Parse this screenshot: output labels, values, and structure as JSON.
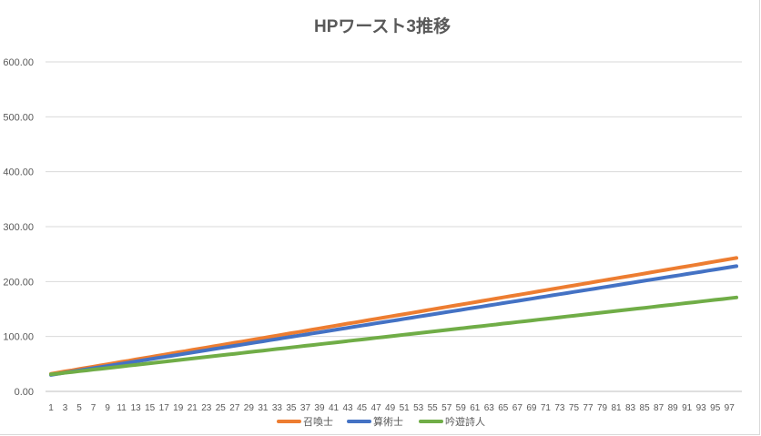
{
  "chart_data": {
    "type": "line",
    "title": "HPワースト3推移",
    "xlabel": "",
    "ylabel": "",
    "x": [
      1,
      2,
      3,
      4,
      5,
      6,
      7,
      8,
      9,
      10,
      11,
      12,
      13,
      14,
      15,
      16,
      17,
      18,
      19,
      20,
      21,
      22,
      23,
      24,
      25,
      26,
      27,
      28,
      29,
      30,
      31,
      32,
      33,
      34,
      35,
      36,
      37,
      38,
      39,
      40,
      41,
      42,
      43,
      44,
      45,
      46,
      47,
      48,
      49,
      50,
      51,
      52,
      53,
      54,
      55,
      56,
      57,
      58,
      59,
      60,
      61,
      62,
      63,
      64,
      65,
      66,
      67,
      68,
      69,
      70,
      71,
      72,
      73,
      74,
      75,
      76,
      77,
      78,
      79,
      80,
      81,
      82,
      83,
      84,
      85,
      86,
      87,
      88,
      89,
      90,
      91,
      92,
      93,
      94,
      95,
      96,
      97,
      98
    ],
    "x_tick_labels": [
      "1",
      "3",
      "5",
      "7",
      "9",
      "11",
      "13",
      "15",
      "17",
      "19",
      "21",
      "23",
      "25",
      "27",
      "29",
      "31",
      "33",
      "35",
      "37",
      "39",
      "41",
      "43",
      "45",
      "47",
      "49",
      "51",
      "53",
      "55",
      "57",
      "59",
      "61",
      "63",
      "65",
      "67",
      "69",
      "71",
      "73",
      "75",
      "77",
      "79",
      "81",
      "83",
      "85",
      "87",
      "89",
      "91",
      "93",
      "95",
      "97"
    ],
    "y_tick_labels": [
      "0.00",
      "100.00",
      "200.00",
      "300.00",
      "400.00",
      "500.00",
      "600.00"
    ],
    "ylim": [
      0,
      600
    ],
    "grid": true,
    "legend": "bottom",
    "series": [
      {
        "name": "召喚士",
        "color": "#ED7D31",
        "start": 32,
        "end": 243,
        "values": [
          32,
          34.2,
          36.4,
          38.5,
          40.7,
          42.9,
          45.1,
          47.2,
          49.4,
          51.6,
          53.8,
          55.9,
          58.1,
          60.3,
          62.5,
          64.6,
          66.8,
          69,
          71.2,
          73.3,
          75.5,
          77.7,
          79.9,
          82,
          84.2,
          86.4,
          88.6,
          90.7,
          92.9,
          95.1,
          97.3,
          99.4,
          101.6,
          103.8,
          106,
          108.1,
          110.3,
          112.5,
          114.7,
          116.8,
          119,
          121.2,
          123.4,
          125.5,
          127.7,
          129.9,
          132.1,
          134.2,
          136.4,
          138.6,
          140.8,
          142.9,
          145.1,
          147.3,
          149.5,
          151.6,
          153.8,
          156,
          158.2,
          160.3,
          162.5,
          164.7,
          166.9,
          169,
          171.2,
          173.4,
          175.6,
          177.7,
          179.9,
          182.1,
          184.3,
          186.4,
          188.6,
          190.8,
          193,
          195.1,
          197.3,
          199.5,
          201.7,
          203.8,
          206,
          208.2,
          210.4,
          212.5,
          214.7,
          216.9,
          219.1,
          221.2,
          223.4,
          225.6,
          227.8,
          229.9,
          232.1,
          234.3,
          236.5,
          238.6,
          240.8,
          243
        ]
      },
      {
        "name": "算術士",
        "color": "#4472C4",
        "start": 30,
        "end": 228,
        "values": [
          30,
          32,
          34.1,
          36.1,
          38.2,
          40.2,
          42.2,
          44.3,
          46.3,
          48.4,
          50.4,
          52.5,
          54.5,
          56.5,
          58.6,
          60.6,
          62.7,
          64.7,
          66.7,
          68.8,
          70.8,
          72.9,
          74.9,
          77,
          79,
          81,
          83.1,
          85.1,
          87.2,
          89.2,
          91.2,
          93.3,
          95.3,
          97.4,
          99.4,
          101.5,
          103.5,
          105.5,
          107.6,
          109.6,
          111.7,
          113.7,
          115.7,
          117.8,
          119.8,
          121.9,
          123.9,
          126,
          128,
          130,
          132.1,
          134.1,
          136.2,
          138.2,
          140.3,
          142.3,
          144.3,
          146.4,
          148.4,
          150.5,
          152.5,
          154.5,
          156.6,
          158.6,
          160.7,
          162.7,
          164.8,
          166.8,
          168.8,
          170.9,
          172.9,
          175,
          177,
          179,
          181.1,
          183.1,
          185.2,
          187.2,
          189.3,
          191.3,
          193.3,
          195.4,
          197.4,
          199.5,
          201.5,
          203.5,
          205.6,
          207.6,
          209.7,
          211.7,
          213.8,
          215.8,
          217.8,
          219.9,
          221.9,
          224,
          226,
          228
        ]
      },
      {
        "name": "吟遊詩人",
        "color": "#70AD47",
        "start": 31,
        "end": 171,
        "values": [
          31,
          32.4,
          33.9,
          35.3,
          36.8,
          38.2,
          39.7,
          41.1,
          42.5,
          44,
          45.4,
          46.9,
          48.3,
          49.8,
          51.2,
          52.6,
          54.1,
          55.5,
          57,
          58.4,
          59.9,
          61.3,
          62.8,
          64.2,
          65.6,
          67.1,
          68.5,
          70,
          71.4,
          72.9,
          74.3,
          75.7,
          77.2,
          78.6,
          80.1,
          81.5,
          83,
          84.4,
          85.8,
          87.3,
          88.7,
          90.2,
          91.6,
          93.1,
          94.5,
          95.9,
          97.4,
          98.8,
          100.3,
          101.7,
          103.2,
          104.6,
          106.1,
          107.5,
          108.9,
          110.4,
          111.8,
          113.3,
          114.7,
          116.2,
          117.6,
          119,
          120.5,
          121.9,
          123.4,
          124.8,
          126.3,
          127.7,
          129.1,
          130.6,
          132,
          133.5,
          134.9,
          136.4,
          137.8,
          139.2,
          140.7,
          142.1,
          143.6,
          145,
          146.5,
          147.9,
          149.4,
          150.8,
          152.2,
          153.7,
          155.1,
          156.6,
          158,
          159.5,
          160.9,
          162.3,
          163.8,
          165.2,
          166.7,
          168.1,
          169.6,
          171
        ]
      }
    ]
  }
}
